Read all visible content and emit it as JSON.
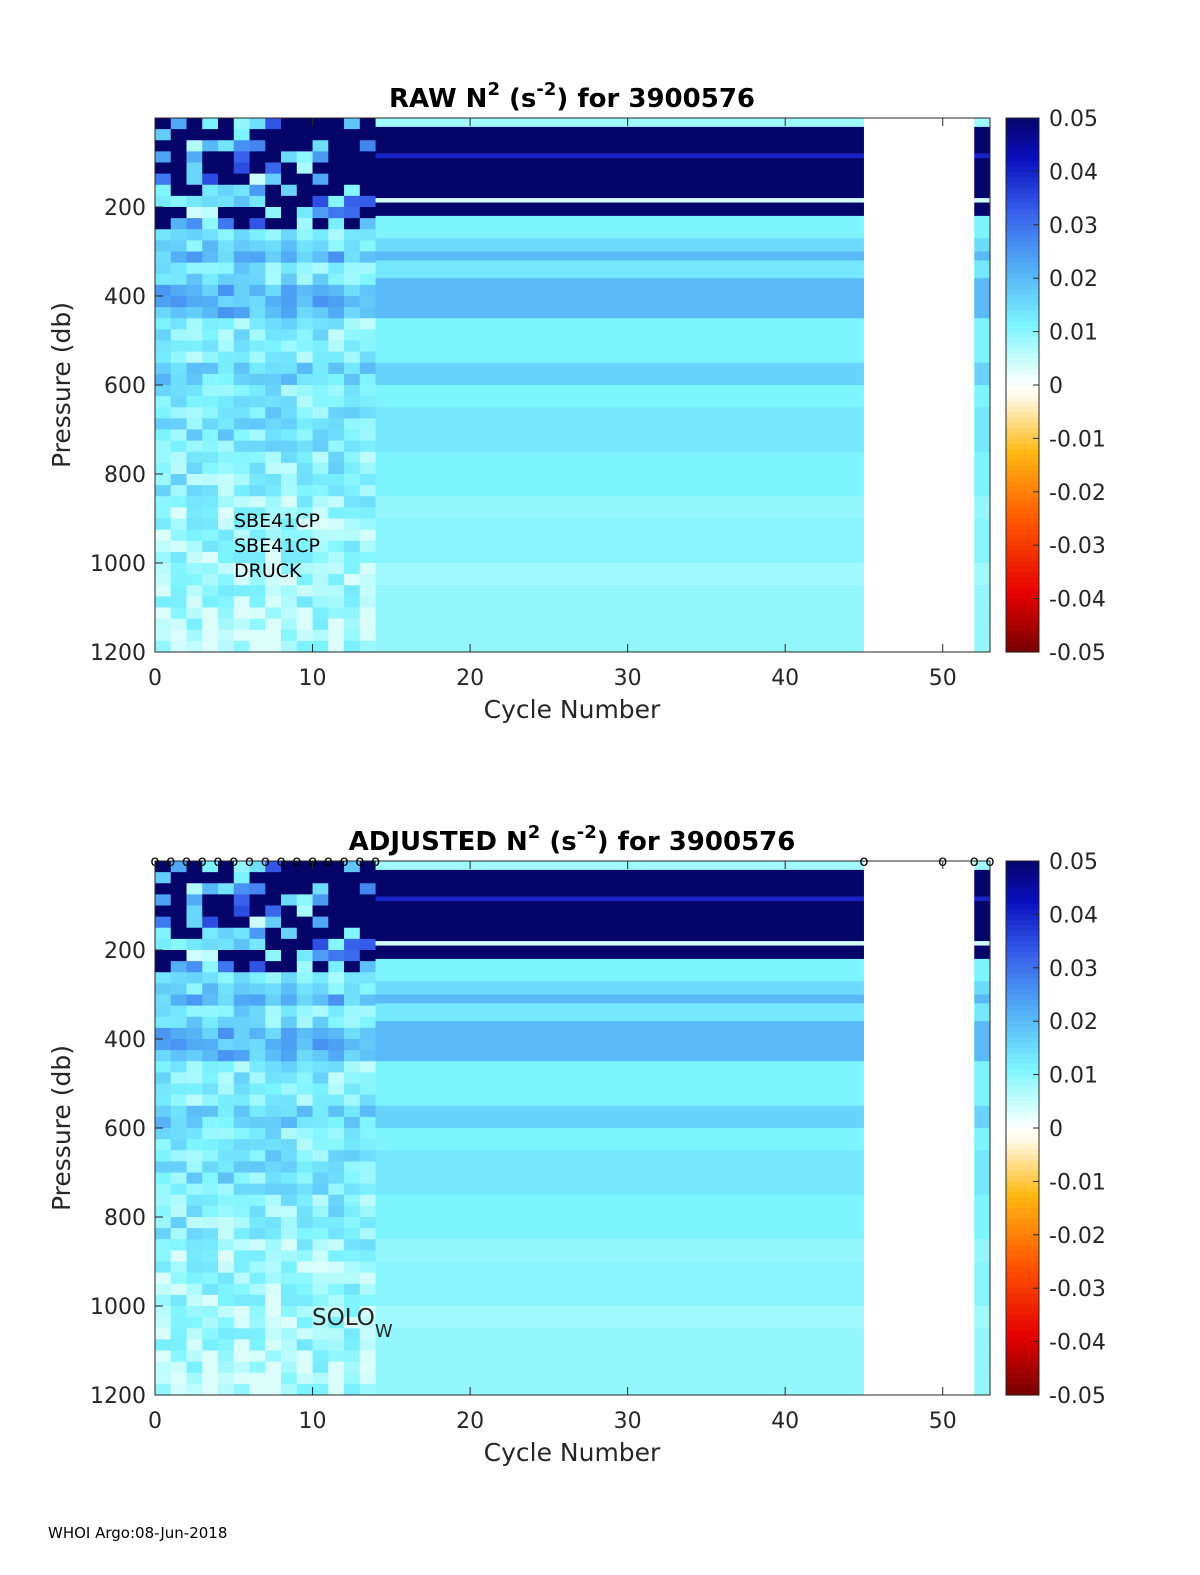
{
  "chart_data": [
    {
      "type": "heatmap",
      "title": "RAW N2 (s-2) for 3900576",
      "title_parts": {
        "prefix": "RAW N",
        "sup1": "2",
        "mid": " (s",
        "sup2": "-2",
        "suffix": ") for 3900576"
      },
      "xlabel": "Cycle Number",
      "ylabel": "Pressure (db)",
      "xlim": [
        0,
        53
      ],
      "ylim": [
        1200,
        0
      ],
      "xticks": [
        0,
        10,
        20,
        30,
        40,
        50
      ],
      "yticks": [
        200,
        400,
        600,
        800,
        1000,
        1200
      ],
      "colorbar": {
        "range": [
          -0.05,
          0.05
        ],
        "ticks": [
          "0.05",
          "0.04",
          "0.03",
          "0.02",
          "0.01",
          "0",
          "-0.01",
          "-0.02",
          "-0.03",
          "-0.04",
          "-0.05"
        ]
      },
      "data_coverage": {
        "early_cycles": [
          0,
          14
        ],
        "constant_profile_cycles": [
          14,
          45
        ],
        "last_cycle": 52
      },
      "profile_layers_db_to_n2": [
        {
          "p0": 0,
          "p1": 20,
          "value": 0.008
        },
        {
          "p0": 20,
          "p1": 80,
          "value": 0.05
        },
        {
          "p0": 80,
          "p1": 90,
          "value": 0.04
        },
        {
          "p0": 90,
          "p1": 180,
          "value": 0.05
        },
        {
          "p0": 180,
          "p1": 190,
          "value": 0.004
        },
        {
          "p0": 190,
          "p1": 220,
          "value": 0.05
        },
        {
          "p0": 220,
          "p1": 270,
          "value": 0.011
        },
        {
          "p0": 270,
          "p1": 300,
          "value": 0.015
        },
        {
          "p0": 300,
          "p1": 320,
          "value": 0.02
        },
        {
          "p0": 320,
          "p1": 360,
          "value": 0.013
        },
        {
          "p0": 360,
          "p1": 450,
          "value": 0.02
        },
        {
          "p0": 450,
          "p1": 550,
          "value": 0.011
        },
        {
          "p0": 550,
          "p1": 600,
          "value": 0.016
        },
        {
          "p0": 600,
          "p1": 650,
          "value": 0.011
        },
        {
          "p0": 650,
          "p1": 750,
          "value": 0.013
        },
        {
          "p0": 750,
          "p1": 850,
          "value": 0.011
        },
        {
          "p0": 850,
          "p1": 900,
          "value": 0.009
        },
        {
          "p0": 900,
          "p1": 1000,
          "value": 0.01
        },
        {
          "p0": 1000,
          "p1": 1050,
          "value": 0.008
        },
        {
          "p0": 1050,
          "p1": 1200,
          "value": 0.009
        }
      ],
      "annotations": [
        "SBE41CP",
        "SBE41CP",
        "DRUCK"
      ]
    },
    {
      "type": "heatmap",
      "title": "ADJUSTED N2 (s-2) for 3900576",
      "title_parts": {
        "prefix": "ADJUSTED N",
        "sup1": "2",
        "mid": " (s",
        "sup2": "-2",
        "suffix": ") for 3900576"
      },
      "xlabel": "Cycle Number",
      "ylabel": "Pressure (db)",
      "xlim": [
        0,
        53
      ],
      "ylim": [
        1200,
        0
      ],
      "xticks": [
        0,
        10,
        20,
        30,
        40,
        50
      ],
      "yticks": [
        200,
        400,
        600,
        800,
        1000,
        1200
      ],
      "colorbar": {
        "range": [
          -0.05,
          0.05
        ],
        "ticks": [
          "0.05",
          "0.04",
          "0.03",
          "0.02",
          "0.01",
          "0",
          "-0.01",
          "-0.02",
          "-0.03",
          "-0.04",
          "-0.05"
        ]
      },
      "qc_marker": "o",
      "qc_marker_cycles": [
        0,
        1,
        2,
        3,
        4,
        5,
        6,
        7,
        8,
        9,
        10,
        11,
        12,
        13,
        14,
        45,
        50,
        52,
        53
      ],
      "annotations": [
        "SOLO",
        "W"
      ]
    }
  ],
  "footer": "WHOI Argo:08-Jun-2018"
}
